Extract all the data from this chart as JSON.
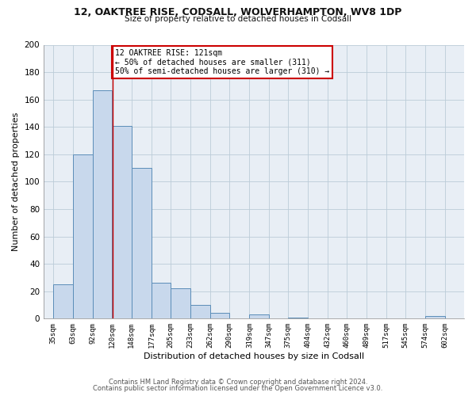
{
  "title1": "12, OAKTREE RISE, CODSALL, WOLVERHAMPTON, WV8 1DP",
  "title2": "Size of property relative to detached houses in Codsall",
  "xlabel": "Distribution of detached houses by size in Codsall",
  "ylabel": "Number of detached properties",
  "footer1": "Contains HM Land Registry data © Crown copyright and database right 2024.",
  "footer2": "Contains public sector information licensed under the Open Government Licence v3.0.",
  "annotation_line1": "12 OAKTREE RISE: 121sqm",
  "annotation_line2": "← 50% of detached houses are smaller (311)",
  "annotation_line3": "50% of semi-detached houses are larger (310) →",
  "bar_color": "#c8d8ec",
  "bar_edge_color": "#5b8db8",
  "property_line_color": "#cc0000",
  "bg_color": "#e8eef5",
  "fig_bg_color": "#ffffff",
  "grid_color": "#bbccd8",
  "xlim": [
    21,
    630
  ],
  "ylim": [
    0,
    200
  ],
  "yticks": [
    0,
    20,
    40,
    60,
    80,
    100,
    120,
    140,
    160,
    180,
    200
  ],
  "bin_edges": [
    35,
    63,
    92,
    120,
    148,
    177,
    205,
    233,
    262,
    290,
    319,
    347,
    375,
    404,
    432,
    460,
    489,
    517,
    545,
    574,
    602
  ],
  "bin_labels": [
    "35sqm",
    "63sqm",
    "92sqm",
    "120sqm",
    "148sqm",
    "177sqm",
    "205sqm",
    "233sqm",
    "262sqm",
    "290sqm",
    "319sqm",
    "347sqm",
    "375sqm",
    "404sqm",
    "432sqm",
    "460sqm",
    "489sqm",
    "517sqm",
    "545sqm",
    "574sqm",
    "602sqm"
  ],
  "counts": [
    25,
    120,
    167,
    141,
    110,
    26,
    22,
    10,
    4,
    0,
    3,
    0,
    1,
    0,
    0,
    0,
    0,
    0,
    0,
    2
  ],
  "property_line_x": 121
}
